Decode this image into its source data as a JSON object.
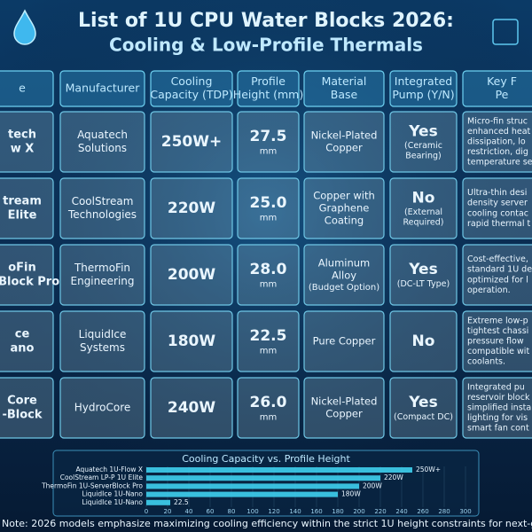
{
  "header": {
    "title": [
      "List of 1U CPU Water Blocks 2026:",
      "Cooling & Low-Profile Thermals"
    ]
  },
  "table": {
    "columns": [
      [
        "e"
      ],
      [
        "Manufacturer"
      ],
      [
        "Cooling",
        "Capacity (TDP)"
      ],
      [
        "Profile",
        "Height (mm)"
      ],
      [
        "Material",
        "Base"
      ],
      [
        "Integrated",
        "Pump (Y/N)"
      ],
      [
        "Key F",
        "Pe"
      ]
    ],
    "rows": [
      [
        {
          "text": [
            "tech",
            "w X"
          ]
        },
        {
          "text": [
            "Aquatech",
            "Solutions"
          ]
        },
        {
          "text": [
            "250W+"
          ]
        },
        {
          "text": [
            "27.5"
          ],
          "sub": [
            "mm"
          ]
        },
        {
          "text": [
            "Nickel-Plated",
            "Copper"
          ]
        },
        {
          "text": [
            "Yes"
          ],
          "sub": [
            "(Ceramic",
            "Bearing)"
          ]
        },
        {
          "text": [
            "Micro-fin struc",
            "enhanced heat",
            "dissipation, lo",
            "restriction, dig",
            "temperature se"
          ]
        }
      ],
      [
        {
          "text": [
            "tream",
            "Elite"
          ]
        },
        {
          "text": [
            "CoolStream",
            "Technologies"
          ]
        },
        {
          "text": [
            "220W"
          ]
        },
        {
          "text": [
            "25.0"
          ],
          "sub": [
            "mm"
          ]
        },
        {
          "text": [
            "Copper with",
            "Graphene",
            "Coating"
          ]
        },
        {
          "text": [
            "No"
          ],
          "sub": [
            "(External",
            "Required)"
          ]
        },
        {
          "text": [
            "Ultra-thin desi",
            "density server",
            "cooling contac",
            "rapid thermal t"
          ]
        }
      ],
      [
        {
          "text": [
            "oFin",
            "erBlock Pro"
          ]
        },
        {
          "text": [
            "ThermoFin",
            "Engineering"
          ]
        },
        {
          "text": [
            "200W"
          ]
        },
        {
          "text": [
            "28.0"
          ],
          "sub": [
            "mm"
          ]
        },
        {
          "text": [
            "Aluminum",
            "Alloy"
          ],
          "sub": [
            "(Budget Option)"
          ]
        },
        {
          "text": [
            "Yes"
          ],
          "sub": [
            "(DC-LT Type)"
          ]
        },
        {
          "text": [
            "Cost-effective,",
            "standard 1U de",
            "optimized for l",
            "operation."
          ]
        }
      ],
      [
        {
          "text": [
            "ce",
            "ano"
          ]
        },
        {
          "text": [
            "LiquidIce",
            "Systems"
          ]
        },
        {
          "text": [
            "180W"
          ]
        },
        {
          "text": [
            "22.5"
          ],
          "sub": [
            "mm"
          ]
        },
        {
          "text": [
            "Pure Copper"
          ]
        },
        {
          "text": [
            "No"
          ]
        },
        {
          "text": [
            "Extreme low-p",
            "tightest chassi",
            "pressure flow",
            "compatible wit",
            "coolants."
          ]
        }
      ],
      [
        {
          "text": [
            "Core",
            "-Block"
          ]
        },
        {
          "text": [
            "HydroCore"
          ]
        },
        {
          "text": [
            "240W"
          ]
        },
        {
          "text": [
            "26.0"
          ],
          "sub": [
            "mm"
          ]
        },
        {
          "text": [
            "Nickel-Plated",
            "Copper"
          ]
        },
        {
          "text": [
            "Yes"
          ],
          "sub": [
            "(Compact DC)"
          ]
        },
        {
          "text": [
            "Integrated pu",
            "reservoir block",
            "simplified insta",
            "lighting for vis",
            "smart fan cont"
          ]
        }
      ]
    ]
  },
  "chart_data": {
    "type": "bar",
    "orientation": "horizontal",
    "title": "Cooling Capacity vs. Profile Height",
    "categories": [
      "Aquatech 1U-Flow X",
      "CoolStream LP-P 1U Elite",
      "ThermoFin 1U-ServerBlock Pro",
      "LiquidIce 1U-Nano",
      "LiquidIce 1U-Nano"
    ],
    "values": [
      250,
      220,
      200,
      180,
      22.5
    ],
    "value_labels": [
      "250W+",
      "220W",
      "200W",
      "180W",
      "22.5"
    ],
    "color": "#3fd0ee",
    "xlim": [
      0,
      300
    ],
    "xticks": [
      0,
      20,
      40,
      60,
      80,
      100,
      120,
      140,
      160,
      180,
      200,
      220,
      240,
      260,
      280,
      300
    ]
  },
  "footer": {
    "note": "Note: 2026 models emphasize maximizing cooling efficiency within the strict 1U height constraints for next-gen processors."
  }
}
